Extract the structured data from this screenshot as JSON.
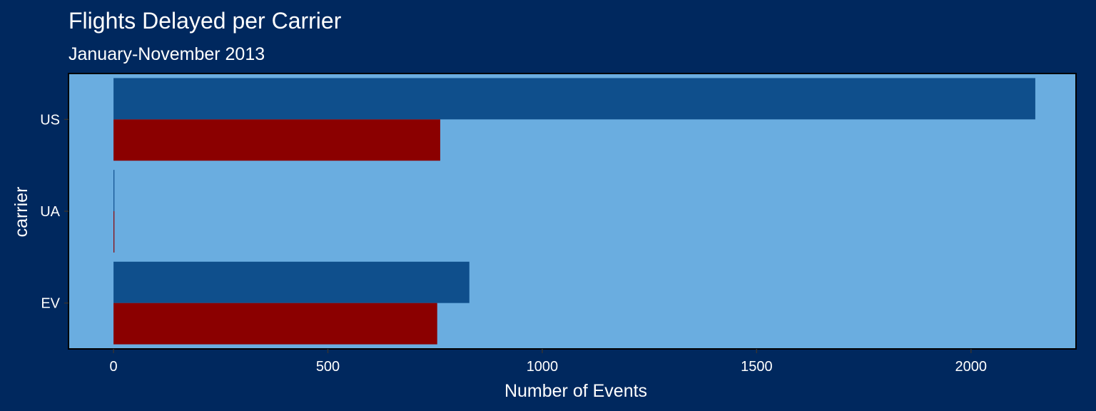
{
  "chart_data": {
    "type": "bar",
    "orientation": "horizontal",
    "title": "Flights Delayed per Carrier",
    "subtitle": "January-November 2013",
    "xlabel": "Number of Events",
    "ylabel": "carrier",
    "categories": [
      "US",
      "UA",
      "EV"
    ],
    "series": [
      {
        "values": [
          2150,
          1,
          830
        ],
        "color": "#0f4f8c"
      },
      {
        "values": [
          762,
          1,
          755
        ],
        "color": "#8b0000"
      }
    ],
    "xlim": [
      -105,
      2245
    ],
    "xticks": [
      0,
      500,
      1000,
      1500,
      2000
    ],
    "grid": false,
    "legend": "none"
  },
  "colors": {
    "page_background": "#00285e",
    "panel_background": "#6aade0",
    "text": "#ffffff"
  }
}
